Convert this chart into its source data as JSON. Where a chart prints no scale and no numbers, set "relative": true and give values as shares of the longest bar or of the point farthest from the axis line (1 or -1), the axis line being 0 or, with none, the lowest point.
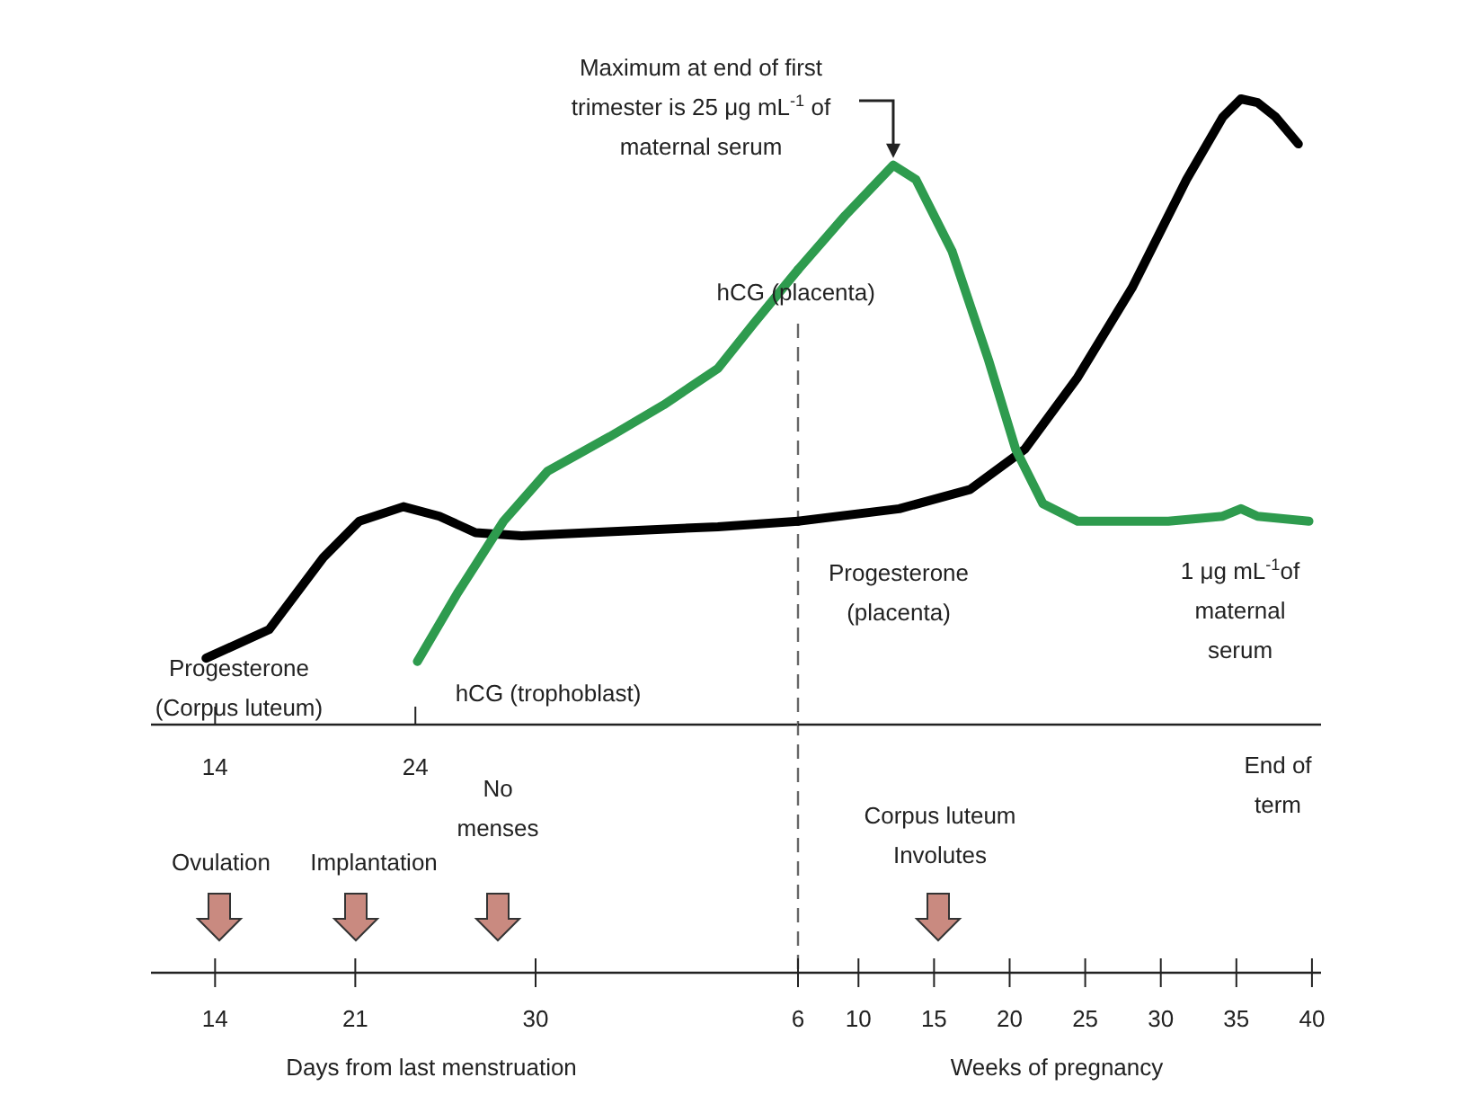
{
  "chart_data": [
    {
      "type": "line",
      "relative": true,
      "xlabel": "Days from last menstruation",
      "xlim": [
        10.8,
        43.1
      ],
      "xticks": [
        14,
        21,
        30
      ],
      "x2lim": [
        10.8,
        43.1
      ],
      "x2ticks": [
        14,
        24
      ],
      "line_style": "solid",
      "marker": "none",
      "series": [
        {
          "color": "#000000",
          "x": [
            13.55,
            16.7,
            19.4,
            21.2,
            23.4,
            25.2,
            27.0,
            29.3,
            34.6,
            39.1,
            43.1
          ],
          "values": [
            0.146,
            0.209,
            0.367,
            0.447,
            0.479,
            0.458,
            0.422,
            0.415,
            0.426,
            0.435,
            0.447
          ]
        },
        {
          "color": "#2e9b4e",
          "x": [
            24.1,
            26.1,
            28.4,
            30.6,
            33.7,
            36.4,
            39.1,
            40.9,
            43.1
          ],
          "values": [
            0.139,
            0.289,
            0.447,
            0.557,
            0.633,
            0.703,
            0.783,
            0.882,
            1
          ]
        }
      ],
      "annotations": [
        "Maximum at end of first\ntrimester is 25 μg mL$^{-1}$ of\nmaternal serum",
        {
          "text": "hCG (placenta)",
          "x": 43.0,
          "y": 0.949
        },
        "Progesterone\n(Corpus luteum)",
        "hCG (trophoblast)",
        "Ovulation",
        "Implantation",
        "No\nmenses"
      ]
    },
    {
      "type": "line",
      "relative": true,
      "xlabel": "Weeks of pregnancy",
      "xlim": [
        6,
        40.6
      ],
      "xticks": [
        6,
        10,
        15,
        20,
        25,
        30,
        35,
        40
      ],
      "line_style": "solid",
      "marker": "none",
      "series": [
        {
          "color": "#000000",
          "x": [
            6,
            12.7,
            17.4,
            21.0,
            24.5,
            28.1,
            31.7,
            34.1,
            35.3,
            36.4,
            37.6,
            39.1
          ],
          "values": [
            0.325,
            0.345,
            0.376,
            0.44,
            0.555,
            0.698,
            0.871,
            0.971,
            1,
            0.994,
            0.971,
            0.928
          ]
        },
        {
          "color": "#2e9b4e",
          "x": [
            6,
            9.1,
            12.3,
            13.8,
            16.2,
            18.6,
            20.4,
            22.2,
            24.5,
            30.5,
            34.1,
            35.3,
            36.4,
            39.8
          ],
          "values": [
            0.727,
            0.813,
            0.894,
            0.871,
            0.756,
            0.583,
            0.44,
            0.353,
            0.325,
            0.325,
            0.333,
            0.345,
            0.333,
            0.325
          ]
        }
      ],
      "ref_lines": [
        {
          "axis": "x",
          "value": 6,
          "line_style": "dashed",
          "color": "#666666"
        }
      ],
      "annotations": [
        "Progesterone\n(placenta)",
        "1 μg mL$^{-1}$of\nmaternal\nserum",
        "End of\nterm",
        "Corpus luteum\nInvolutes"
      ]
    }
  ]
}
